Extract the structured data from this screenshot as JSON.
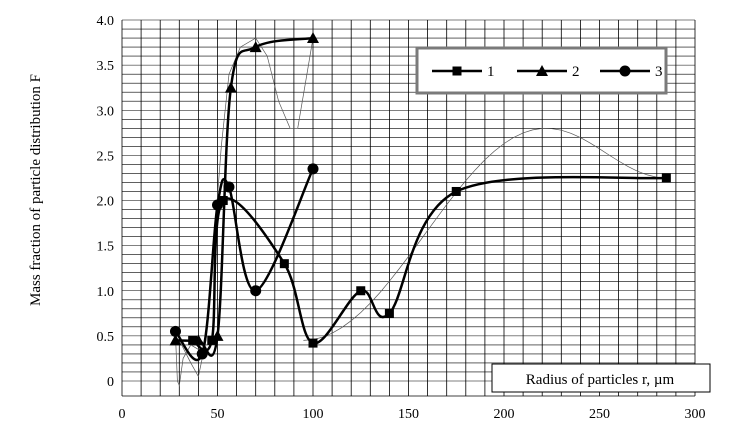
{
  "chart_data": {
    "type": "line",
    "title": "",
    "ylabel": "Mass fraction of particle distribution F",
    "xlabel": "Radius of particles r, µm",
    "xlim": [
      0,
      300
    ],
    "ylim": [
      0,
      4.0
    ],
    "x_ticks": [
      "0",
      "50",
      "100",
      "150",
      "200",
      "250",
      "300"
    ],
    "y_ticks": [
      "0",
      "0.5",
      "1.0",
      "1.5",
      "2.0",
      "2.5",
      "3.0",
      "3.5",
      "4.0"
    ],
    "grid": true,
    "legend_position": "top-right",
    "series": [
      {
        "name": "1",
        "marker": "square",
        "x": [
          37,
          47,
          53,
          85,
          100,
          125,
          140,
          175,
          285
        ],
        "y": [
          0.45,
          0.45,
          2.0,
          1.3,
          0.42,
          1.0,
          0.75,
          2.1,
          2.25
        ]
      },
      {
        "name": "2",
        "marker": "triangle",
        "x": [
          28,
          40,
          50,
          57,
          70,
          100
        ],
        "y": [
          0.45,
          0.45,
          0.5,
          3.25,
          3.7,
          3.8
        ]
      },
      {
        "name": "3",
        "marker": "circle",
        "x": [
          28,
          42,
          50,
          56,
          70,
          100
        ],
        "y": [
          0.55,
          0.3,
          1.95,
          2.15,
          1.0,
          2.35
        ]
      }
    ]
  }
}
